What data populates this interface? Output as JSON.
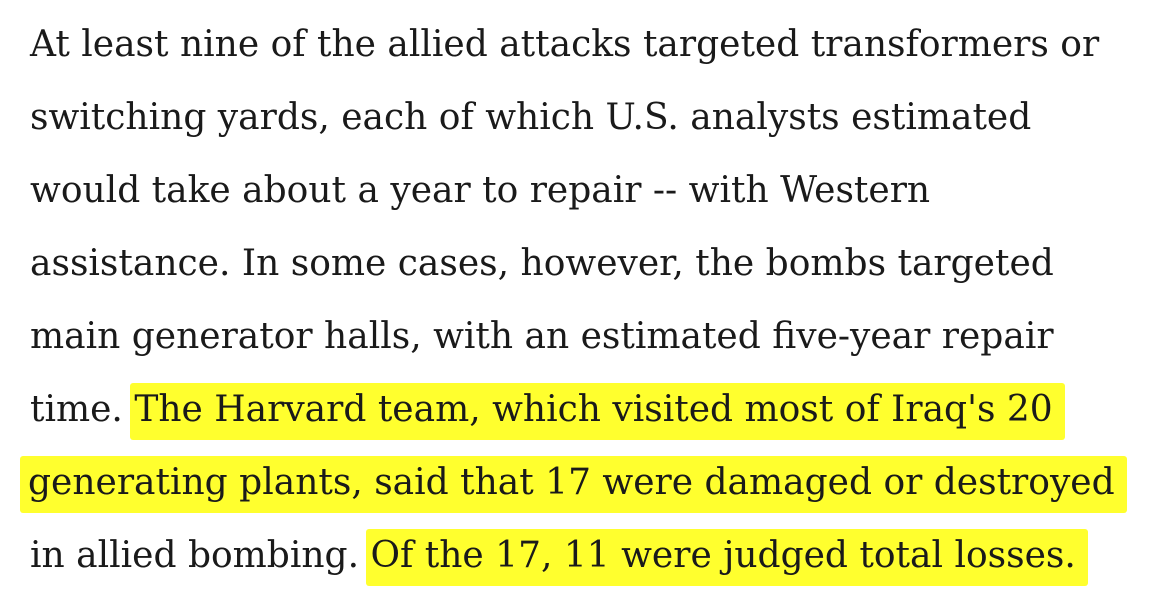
{
  "paragraph": {
    "lines": [
      "At least nine of the allied attacks targeted transformers or",
      "switching yards, each of which U.S. analysts estimated",
      "would take about a year to repair -- with Western",
      "assistance. In some cases, however, the bombs targeted",
      "main generator halls, with an estimated five-year repair"
    ],
    "line6_plain": "time.",
    "line6_highlight": "The Harvard team, which visited most of Iraq's 20",
    "line7_highlight": "generating plants, said that 17 were damaged or destroyed",
    "line8_plain": "in allied bombing.",
    "line8_highlight": "Of the 17, 11 were judged total losses."
  },
  "colors": {
    "highlight": "#ffff2e",
    "text": "#1a1a1a",
    "background": "#ffffff"
  }
}
